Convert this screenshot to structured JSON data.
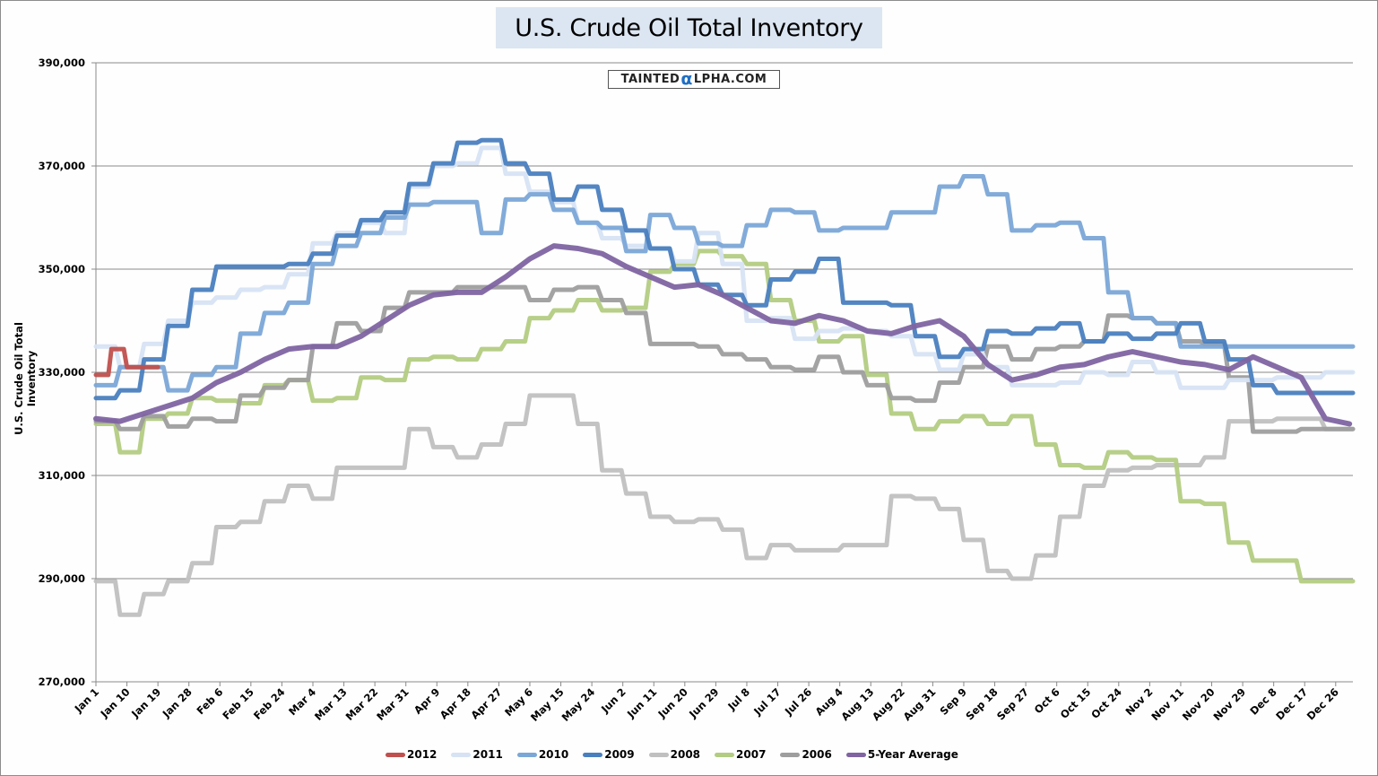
{
  "chart_data": {
    "type": "line",
    "title": "U.S. Crude Oil Total Inventory",
    "watermark": "TAINTEDαLPHA.COM",
    "xlabel": "",
    "ylabel": "U.S. Crude Oil Total Inventory",
    "ylim": [
      270000,
      390000
    ],
    "yticks": [
      270000,
      290000,
      310000,
      330000,
      350000,
      370000,
      390000
    ],
    "ytick_labels": [
      "270,000",
      "290,000",
      "310,000",
      "330,000",
      "350,000",
      "370,000",
      "390,000"
    ],
    "xlim_days": [
      0,
      365
    ],
    "xtick_days": [
      0,
      9,
      18,
      27,
      36,
      45,
      54,
      63,
      72,
      81,
      90,
      99,
      108,
      117,
      126,
      135,
      144,
      153,
      162,
      171,
      180,
      189,
      198,
      207,
      216,
      225,
      234,
      243,
      252,
      261,
      270,
      279,
      288,
      297,
      306,
      315,
      324,
      333,
      342,
      351,
      360
    ],
    "xtick_labels": [
      "Jan 1",
      "Jan 10",
      "Jan 19",
      "Jan 28",
      "Feb 6",
      "Feb 15",
      "Feb 24",
      "Mar 4",
      "Mar 13",
      "Mar 22",
      "Mar 31",
      "Apr 9",
      "Apr 18",
      "Apr 27",
      "May 6",
      "May 15",
      "May 24",
      "Jun 2",
      "Jun 11",
      "Jun 20",
      "Jun 29",
      "Jul 8",
      "Jul 17",
      "Jul 26",
      "Aug 4",
      "Aug 13",
      "Aug 22",
      "Aug 31",
      "Sep 9",
      "Sep 18",
      "Sep 27",
      "Oct 6",
      "Oct 15",
      "Oct 24",
      "Nov 2",
      "Nov 11",
      "Nov 20",
      "Nov 29",
      "Dec 8",
      "Dec 17",
      "Dec 26"
    ],
    "grid": "horizontal",
    "legend_position": "bottom",
    "x_interval_days": 7,
    "series": [
      {
        "name": "2012",
        "color": "#c0504d",
        "width": 5,
        "values": [
          329500,
          334500,
          331000,
          331000,
          331000
        ],
        "start_day": 0,
        "step_days": 4.5
      },
      {
        "name": "2011",
        "color": "#d7e3f4",
        "width": 5,
        "values": [
          335000,
          331000,
          335500,
          340000,
          343500,
          344500,
          346000,
          346500,
          349000,
          355000,
          357000,
          359000,
          357000,
          366000,
          370000,
          370500,
          373500,
          368500,
          365000,
          363000,
          359000,
          356000,
          354500,
          354000,
          351500,
          357000,
          351000,
          340000,
          340500,
          336500,
          338000,
          338500,
          338000,
          337000,
          333500,
          330500,
          333500,
          331000,
          327500,
          327500,
          328000,
          330000,
          329500,
          332000,
          330000,
          327000,
          327000,
          328500,
          328500,
          329000,
          329000,
          330000,
          330000
        ]
      },
      {
        "name": "2010",
        "color": "#7ba7d7",
        "width": 5,
        "values": [
          327500,
          331000,
          331000,
          326500,
          329500,
          331000,
          337500,
          341500,
          343500,
          351000,
          354500,
          357000,
          360000,
          362500,
          363000,
          363000,
          357000,
          363500,
          364500,
          361500,
          359000,
          358000,
          353500,
          360500,
          358000,
          355000,
          354500,
          358500,
          361500,
          361000,
          357500,
          358000,
          358000,
          361000,
          361000,
          366000,
          368000,
          364500,
          357500,
          358500,
          359000,
          356000,
          345500,
          340500,
          339500,
          335000,
          335000,
          335000,
          335000,
          335000,
          335000,
          335000,
          335000
        ]
      },
      {
        "name": "2009",
        "color": "#4a7fbf",
        "width": 5,
        "values": [
          325000,
          326500,
          332500,
          339000,
          346000,
          350500,
          350500,
          350500,
          351000,
          353000,
          356500,
          359500,
          361000,
          366500,
          370500,
          374500,
          375000,
          370500,
          368500,
          363500,
          366000,
          361500,
          357500,
          354000,
          350000,
          347000,
          345000,
          343000,
          348000,
          349500,
          352000,
          343500,
          343500,
          343000,
          337000,
          333000,
          334500,
          338000,
          337500,
          338500,
          339500,
          336000,
          337500,
          336500,
          337500,
          339500,
          336000,
          332500,
          327500,
          326000,
          326000,
          326000,
          326000
        ]
      },
      {
        "name": "2008",
        "color": "#c0c0c0",
        "width": 5,
        "values": [
          289500,
          283000,
          287000,
          289500,
          293000,
          300000,
          301000,
          305000,
          308000,
          305500,
          311500,
          311500,
          311500,
          319000,
          315500,
          313500,
          316000,
          320000,
          325500,
          325500,
          320000,
          311000,
          306500,
          302000,
          301000,
          301500,
          299500,
          294000,
          296500,
          295500,
          295500,
          296500,
          296500,
          306000,
          305500,
          303500,
          297500,
          291500,
          290000,
          294500,
          302000,
          308000,
          311000,
          311500,
          312000,
          312000,
          313500,
          320500,
          320500,
          321000,
          321000,
          319000,
          319000
        ]
      },
      {
        "name": "2007",
        "color": "#b3cc82",
        "width": 5,
        "values": [
          320000,
          314500,
          321000,
          322000,
          325000,
          324500,
          324000,
          327500,
          328500,
          324500,
          325000,
          329000,
          328500,
          332500,
          333000,
          332500,
          334500,
          336000,
          340500,
          342000,
          344000,
          342000,
          342500,
          349500,
          351000,
          353500,
          352500,
          351000,
          344000,
          340000,
          336000,
          337000,
          329500,
          322000,
          319000,
          320500,
          321500,
          320000,
          321500,
          316000,
          312000,
          311500,
          314500,
          313500,
          313000,
          305000,
          304500,
          297000,
          293500,
          293500,
          289500,
          289500,
          289500
        ]
      },
      {
        "name": "2006",
        "color": "#9e9e9e",
        "width": 5,
        "values": [
          320500,
          319000,
          321500,
          319500,
          321000,
          320500,
          325500,
          327000,
          328500,
          335000,
          339500,
          338000,
          342500,
          345500,
          345500,
          346500,
          346500,
          346500,
          344000,
          346000,
          346500,
          344000,
          341500,
          335500,
          335500,
          335000,
          333500,
          332500,
          331000,
          330500,
          333000,
          330000,
          327500,
          325000,
          324500,
          328000,
          331000,
          335000,
          332500,
          334500,
          335000,
          336000,
          341000,
          340500,
          339500,
          336000,
          335500,
          329000,
          318500,
          318500,
          319000,
          319000,
          319000
        ]
      },
      {
        "name": "5-Year Average",
        "color": "#8064a2",
        "width": 6,
        "values": [
          321000,
          320500,
          322000,
          323500,
          325000,
          328000,
          330000,
          332500,
          334500,
          335000,
          335000,
          337000,
          340000,
          343000,
          345000,
          345500,
          345500,
          348500,
          352000,
          354500,
          354000,
          353000,
          350500,
          348500,
          346500,
          347000,
          345000,
          342500,
          340000,
          339500,
          341000,
          340000,
          338000,
          337500,
          339000,
          340000,
          337000,
          331500,
          328500,
          329500,
          331000,
          331500,
          333000,
          334000,
          333000,
          332000,
          331500,
          330500,
          333000,
          331000,
          329000,
          321000,
          320000
        ]
      }
    ],
    "legend": [
      {
        "label": "2012",
        "color": "#c0504d"
      },
      {
        "label": "2011",
        "color": "#d7e3f4"
      },
      {
        "label": "2010",
        "color": "#7ba7d7"
      },
      {
        "label": "2009",
        "color": "#4a7fbf"
      },
      {
        "label": "2008",
        "color": "#c0c0c0"
      },
      {
        "label": "2007",
        "color": "#b3cc82"
      },
      {
        "label": "2006",
        "color": "#9e9e9e"
      },
      {
        "label": "5-Year Average",
        "color": "#8064a2"
      }
    ]
  }
}
